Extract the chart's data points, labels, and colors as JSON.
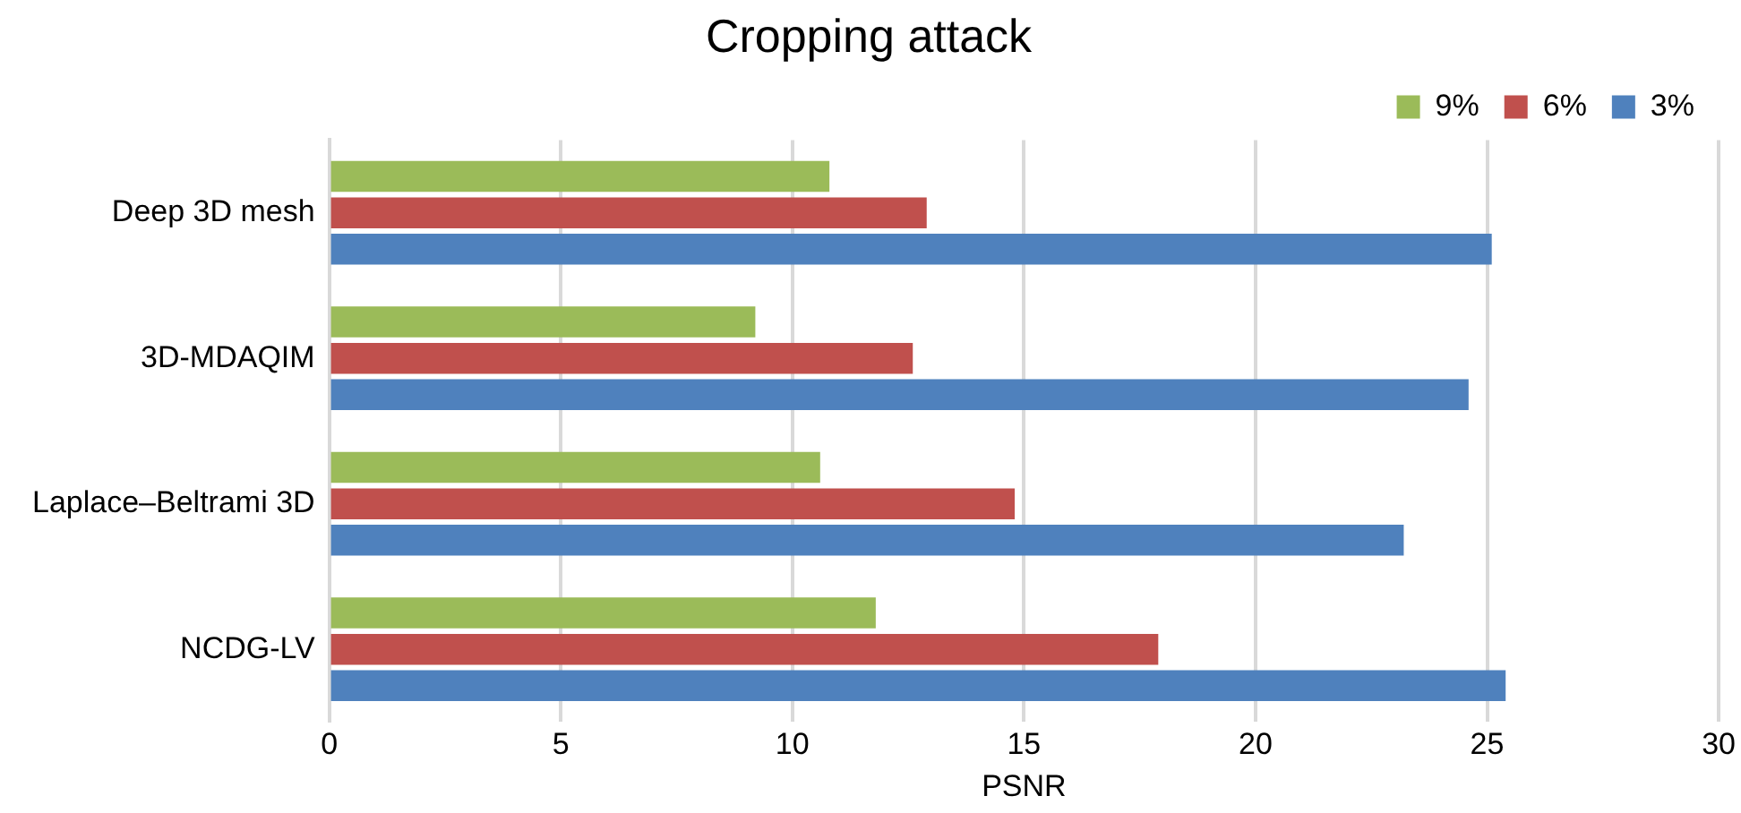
{
  "chart_data": {
    "type": "bar",
    "orientation": "horizontal",
    "title": "Cropping attack",
    "xlabel": "PSNR",
    "categories": [
      "Deep 3D mesh",
      "3D-MDAQIM",
      "Laplace–Beltrami 3D",
      "NCDG-LV"
    ],
    "series": [
      {
        "name": "9%",
        "color": "#9bbb59",
        "values": [
          10.8,
          9.2,
          10.6,
          11.8
        ]
      },
      {
        "name": "6%",
        "color": "#c0504d",
        "values": [
          12.9,
          12.6,
          14.8,
          17.9
        ]
      },
      {
        "name": "3%",
        "color": "#4f81bd",
        "values": [
          25.1,
          24.6,
          23.2,
          25.4
        ]
      }
    ],
    "xlim": [
      0,
      30
    ],
    "xticks": [
      0,
      5,
      10,
      15,
      20,
      25,
      30
    ],
    "grid": "x",
    "legend": "top right"
  }
}
